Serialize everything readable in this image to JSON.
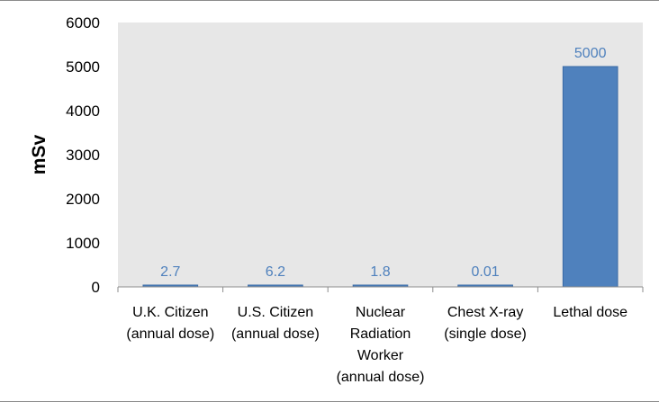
{
  "chart_data": {
    "type": "bar",
    "title": "",
    "xlabel": "",
    "ylabel": "mSv",
    "ylim": [
      0,
      6000
    ],
    "yticks": [
      0,
      1000,
      2000,
      3000,
      4000,
      5000,
      6000
    ],
    "categories": [
      [
        "U.K. Citizen",
        "(annual dose)"
      ],
      [
        "U.S. Citizen",
        "(annual dose)"
      ],
      [
        "Nuclear",
        "Radiation",
        "Worker",
        "(annual dose)"
      ],
      [
        "Chest X-ray",
        "(single dose)"
      ],
      [
        "Lethal dose"
      ]
    ],
    "values": [
      2.7,
      6.2,
      1.8,
      0.01,
      5000
    ],
    "data_labels": [
      "2.7",
      "6.2",
      "1.8",
      "0.01",
      "5000"
    ],
    "colors": {
      "bar": "#4f81bd",
      "bar_edge": "#3a6aa5",
      "data_label": "#4f81bd",
      "plot_background": "#e7e7e7",
      "axis": "#8c8c8c"
    },
    "grid": false,
    "legend": "none"
  }
}
